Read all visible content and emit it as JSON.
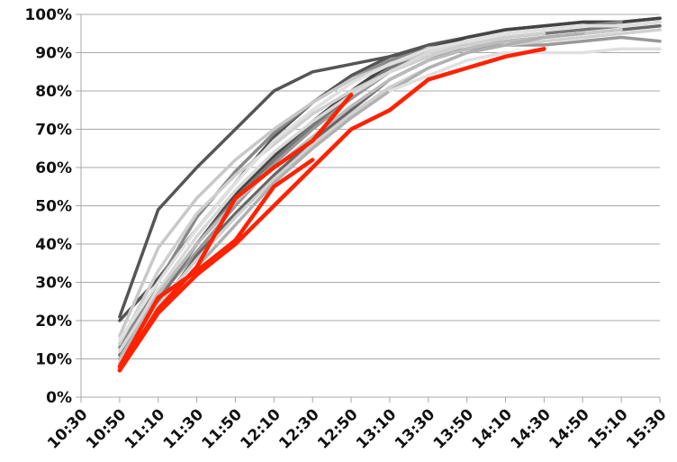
{
  "chart_data": {
    "type": "line",
    "title": "",
    "xlabel": "",
    "ylabel": "",
    "ylim": [
      0,
      100
    ],
    "y_ticks": [
      "0%",
      "10%",
      "20%",
      "30%",
      "40%",
      "50%",
      "60%",
      "70%",
      "80%",
      "90%",
      "100%"
    ],
    "categories": [
      "10:30",
      "10:50",
      "11:10",
      "11:30",
      "11:50",
      "12:10",
      "12:30",
      "12:50",
      "13:10",
      "13:30",
      "13:50",
      "14:10",
      "14:30",
      "14:50",
      "15:10",
      "15:30"
    ],
    "grid": true,
    "legend": "none",
    "series": [
      {
        "color": "#555555",
        "values": [
          null,
          21,
          49,
          60,
          70,
          80,
          85,
          87,
          89,
          91,
          93,
          null,
          null,
          null,
          null,
          null
        ]
      },
      {
        "color": "#555555",
        "values": [
          null,
          20,
          31,
          44,
          56,
          68,
          77,
          84,
          89,
          92,
          94,
          96,
          97,
          98,
          98,
          99
        ]
      },
      {
        "color": "#444444",
        "values": [
          null,
          10,
          26,
          40,
          53,
          63,
          72,
          80,
          87,
          91,
          94,
          96,
          97,
          98,
          98,
          99
        ]
      },
      {
        "color": "#888888",
        "values": [
          null,
          13,
          30,
          47,
          59,
          69,
          77,
          83,
          88,
          91,
          93,
          95,
          96,
          97,
          98,
          null
        ]
      },
      {
        "color": "#999999",
        "values": [
          null,
          11,
          26,
          38,
          50,
          61,
          70,
          78,
          85,
          89,
          91,
          92,
          92,
          93,
          94,
          93
        ]
      },
      {
        "color": "#666666",
        "values": [
          null,
          9,
          23,
          37,
          48,
          58,
          67,
          75,
          83,
          88,
          91,
          93,
          94,
          95,
          96,
          97
        ]
      },
      {
        "color": "#777777",
        "values": [
          null,
          11,
          25,
          40,
          52,
          62,
          71,
          79,
          86,
          90,
          92,
          94,
          95,
          96,
          97,
          98
        ]
      },
      {
        "color": "#c8c8c8",
        "values": [
          null,
          16,
          39,
          52,
          62,
          70,
          77,
          83,
          87,
          90,
          92,
          93,
          94,
          95,
          96,
          null
        ]
      },
      {
        "color": "#cfcfcf",
        "values": [
          null,
          14,
          33,
          48,
          58,
          66,
          74,
          80,
          85,
          89,
          92,
          94,
          95,
          null,
          null,
          null
        ]
      },
      {
        "color": "#d8d8d8",
        "values": [
          null,
          12,
          28,
          42,
          54,
          64,
          72,
          79,
          85,
          90,
          93,
          95,
          96,
          97,
          null,
          null
        ]
      },
      {
        "color": "#bbbbbb",
        "values": [
          null,
          10,
          27,
          40,
          51,
          60,
          68,
          76,
          83,
          88,
          91,
          93,
          94,
          95,
          null,
          null
        ]
      },
      {
        "color": "#d0d0d0",
        "values": [
          null,
          9,
          24,
          36,
          47,
          57,
          66,
          74,
          81,
          86,
          90,
          92,
          93,
          94,
          95,
          96
        ]
      },
      {
        "color": "#e0e0e0",
        "values": [
          null,
          15,
          30,
          44,
          56,
          67,
          75,
          82,
          87,
          91,
          93,
          95,
          96,
          97,
          97,
          98
        ]
      },
      {
        "color": "#b0b0b0",
        "values": [
          null,
          8,
          22,
          34,
          45,
          56,
          65,
          73,
          80,
          86,
          90,
          92,
          94,
          95,
          null,
          null
        ]
      },
      {
        "color": "#e0e0e0",
        "values": [
          null,
          null,
          null,
          null,
          null,
          null,
          null,
          null,
          80,
          84,
          88,
          90,
          90,
          90,
          91,
          91
        ]
      },
      {
        "color": "#ff2200",
        "values": [
          null,
          7,
          23,
          34,
          52,
          60,
          67,
          79,
          null,
          null,
          null,
          null,
          null,
          null,
          null,
          null
        ]
      },
      {
        "color": "#ff2200",
        "values": [
          null,
          8,
          26,
          33,
          41,
          55,
          62,
          null,
          null,
          null,
          null,
          null,
          null,
          null,
          null,
          null
        ]
      },
      {
        "color": "#ff2200",
        "values": [
          null,
          7,
          22,
          32,
          40,
          50,
          60,
          70,
          75,
          83,
          86,
          89,
          91,
          null,
          null,
          null
        ]
      }
    ]
  }
}
